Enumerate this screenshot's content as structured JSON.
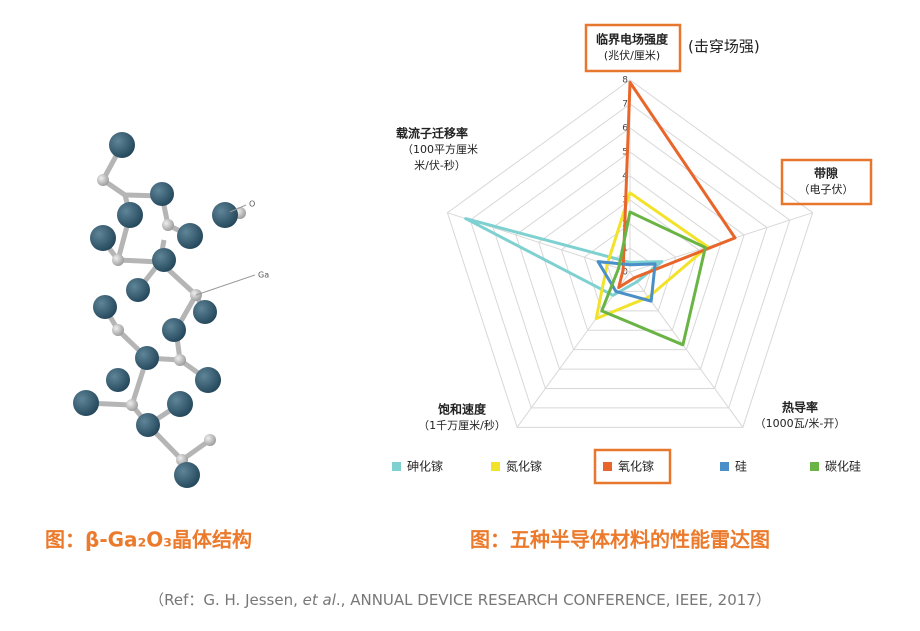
{
  "crystal": {
    "labels": [
      "O",
      "Ga"
    ]
  },
  "chart_data": {
    "type": "radar",
    "axes": [
      {
        "label": "临界电场强度",
        "unit": [
          "(兆伏/厘米)"
        ],
        "note": "(击穿场强)"
      },
      {
        "label": "带隙",
        "unit": [
          "（电子伏）"
        ]
      },
      {
        "label": "热导率",
        "unit": [
          "（1000瓦/米-开）"
        ]
      },
      {
        "label": "饱和速度",
        "unit": [
          "（1千万厘米/秒）"
        ]
      },
      {
        "label": "载流子迁移率",
        "unit": [
          "（100平方厘米",
          "米/伏-秒）"
        ]
      }
    ],
    "rlim": [
      0,
      8
    ],
    "rticks": [
      0,
      1,
      2,
      3,
      4,
      5,
      6,
      7,
      8
    ],
    "series": [
      {
        "name": "砷化镓",
        "color": "#7fd1d1",
        "values": [
          0.4,
          1.4,
          0.5,
          1.2,
          7.2
        ]
      },
      {
        "name": "氮化镓",
        "color": "#f2e22a",
        "values": [
          3.3,
          3.4,
          1.3,
          2.4,
          1.0
        ]
      },
      {
        "name": "氧化镓",
        "color": "#e8662a",
        "values": [
          7.9,
          4.6,
          0.3,
          0.8,
          0.3
        ]
      },
      {
        "name": "硅",
        "color": "#4a8fc8",
        "values": [
          0.3,
          1.1,
          1.5,
          1.0,
          1.4
        ]
      },
      {
        "name": "碳化硅",
        "color": "#6ab445",
        "values": [
          2.5,
          3.3,
          3.75,
          2.0,
          0.5
        ]
      }
    ]
  },
  "captions": [
    "图：β-Ga₂O₃晶体结构",
    "图：五种半导体材料的性能雷达图"
  ],
  "reference": {
    "parts": [
      "（Ref：G. H. Jessen, ",
      "et al",
      "., ANNUAL DEVICE RESEARCH CONFERENCE, IEEE, 2017）"
    ]
  }
}
